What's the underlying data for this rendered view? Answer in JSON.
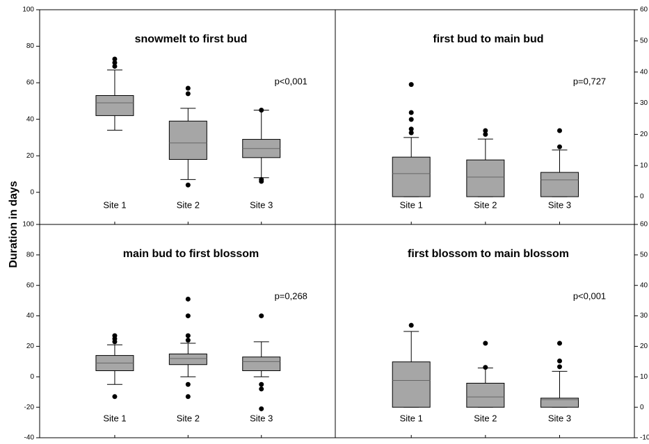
{
  "chart_data": [
    {
      "type": "box",
      "title": "snowmelt to first bud",
      "annotation": "p<0,001",
      "ylabel": "Duration in days",
      "axis_side": "left",
      "color": "#a6a6a6",
      "categories": [
        "Site 1",
        "Site 2",
        "Site 3"
      ],
      "ylim": [
        -17.6,
        100
      ],
      "yticks": [
        0,
        20,
        40,
        60,
        80,
        100
      ],
      "boxes": [
        {
          "whisker_low": 34,
          "q1": 42,
          "median": 49,
          "q3": 53,
          "whisker_high": 67,
          "outliers": [
            69,
            71,
            73
          ]
        },
        {
          "whisker_low": 7,
          "q1": 18,
          "median": 27,
          "q3": 39,
          "whisker_high": 46,
          "outliers": [
            4,
            54,
            57
          ]
        },
        {
          "whisker_low": 8,
          "q1": 19,
          "median": 24,
          "q3": 29,
          "whisker_high": 45,
          "outliers": [
            6,
            7,
            45
          ]
        }
      ]
    },
    {
      "type": "box",
      "title": "first bud to main bud",
      "annotation": "p=0,727",
      "axis_side": "right",
      "color": "#a6a6a6",
      "categories": [
        "Site 1",
        "Site 2",
        "Site 3"
      ],
      "ylim": [
        -8.9,
        60
      ],
      "yticks": [
        0,
        10,
        20,
        30,
        40,
        50,
        60
      ],
      "boxes": [
        {
          "whisker_low": 0,
          "q1": 0,
          "median": 7.4,
          "q3": 12.7,
          "whisker_high": 19,
          "outliers": [
            20.5,
            21.7,
            24.8,
            27,
            36
          ]
        },
        {
          "whisker_low": 0,
          "q1": 0,
          "median": 6.3,
          "q3": 11.8,
          "whisker_high": 18.5,
          "outliers": [
            20,
            21.2
          ]
        },
        {
          "whisker_low": 0,
          "q1": 0,
          "median": 5.4,
          "q3": 7.8,
          "whisker_high": 15,
          "outliers": [
            16,
            21.2
          ]
        }
      ]
    },
    {
      "type": "box",
      "title": "main bud to first blossom",
      "annotation": "p=0,268",
      "axis_side": "left",
      "color": "#a6a6a6",
      "categories": [
        "Site 1",
        "Site 2",
        "Site 3"
      ],
      "ylim": [
        -40,
        100
      ],
      "yticks": [
        -40,
        -20,
        0,
        20,
        40,
        60,
        80,
        100
      ],
      "boxes": [
        {
          "whisker_low": -5,
          "q1": 4,
          "median": 9,
          "q3": 14,
          "whisker_high": 21,
          "outliers": [
            -13,
            23,
            25,
            27
          ]
        },
        {
          "whisker_low": 0,
          "q1": 8,
          "median": 12,
          "q3": 15,
          "whisker_high": 22,
          "outliers": [
            -13,
            -5,
            24,
            27,
            40,
            51
          ]
        },
        {
          "whisker_low": 0,
          "q1": 4,
          "median": 10,
          "q3": 13,
          "whisker_high": 23,
          "outliers": [
            -21,
            -8,
            -5,
            40
          ]
        }
      ]
    },
    {
      "type": "box",
      "title": "first blossom to main blossom",
      "annotation": "p<0,001",
      "axis_side": "right",
      "color": "#a6a6a6",
      "categories": [
        "Site 1",
        "Site 2",
        "Site 3"
      ],
      "ylim": [
        -10,
        60
      ],
      "yticks": [
        -10,
        0,
        10,
        20,
        30,
        40,
        50,
        60
      ],
      "boxes": [
        {
          "whisker_low": 0,
          "q1": 0,
          "median": 8.8,
          "q3": 14.9,
          "whisker_high": 24.9,
          "outliers": [
            26.9
          ]
        },
        {
          "whisker_low": 0,
          "q1": 0,
          "median": 3.4,
          "q3": 7.9,
          "whisker_high": 12.9,
          "outliers": [
            13.1,
            21
          ]
        },
        {
          "whisker_low": 0,
          "q1": 0,
          "median": 2.5,
          "q3": 3,
          "whisker_high": 11.8,
          "outliers": [
            13.3,
            15.2,
            21
          ]
        }
      ]
    }
  ]
}
